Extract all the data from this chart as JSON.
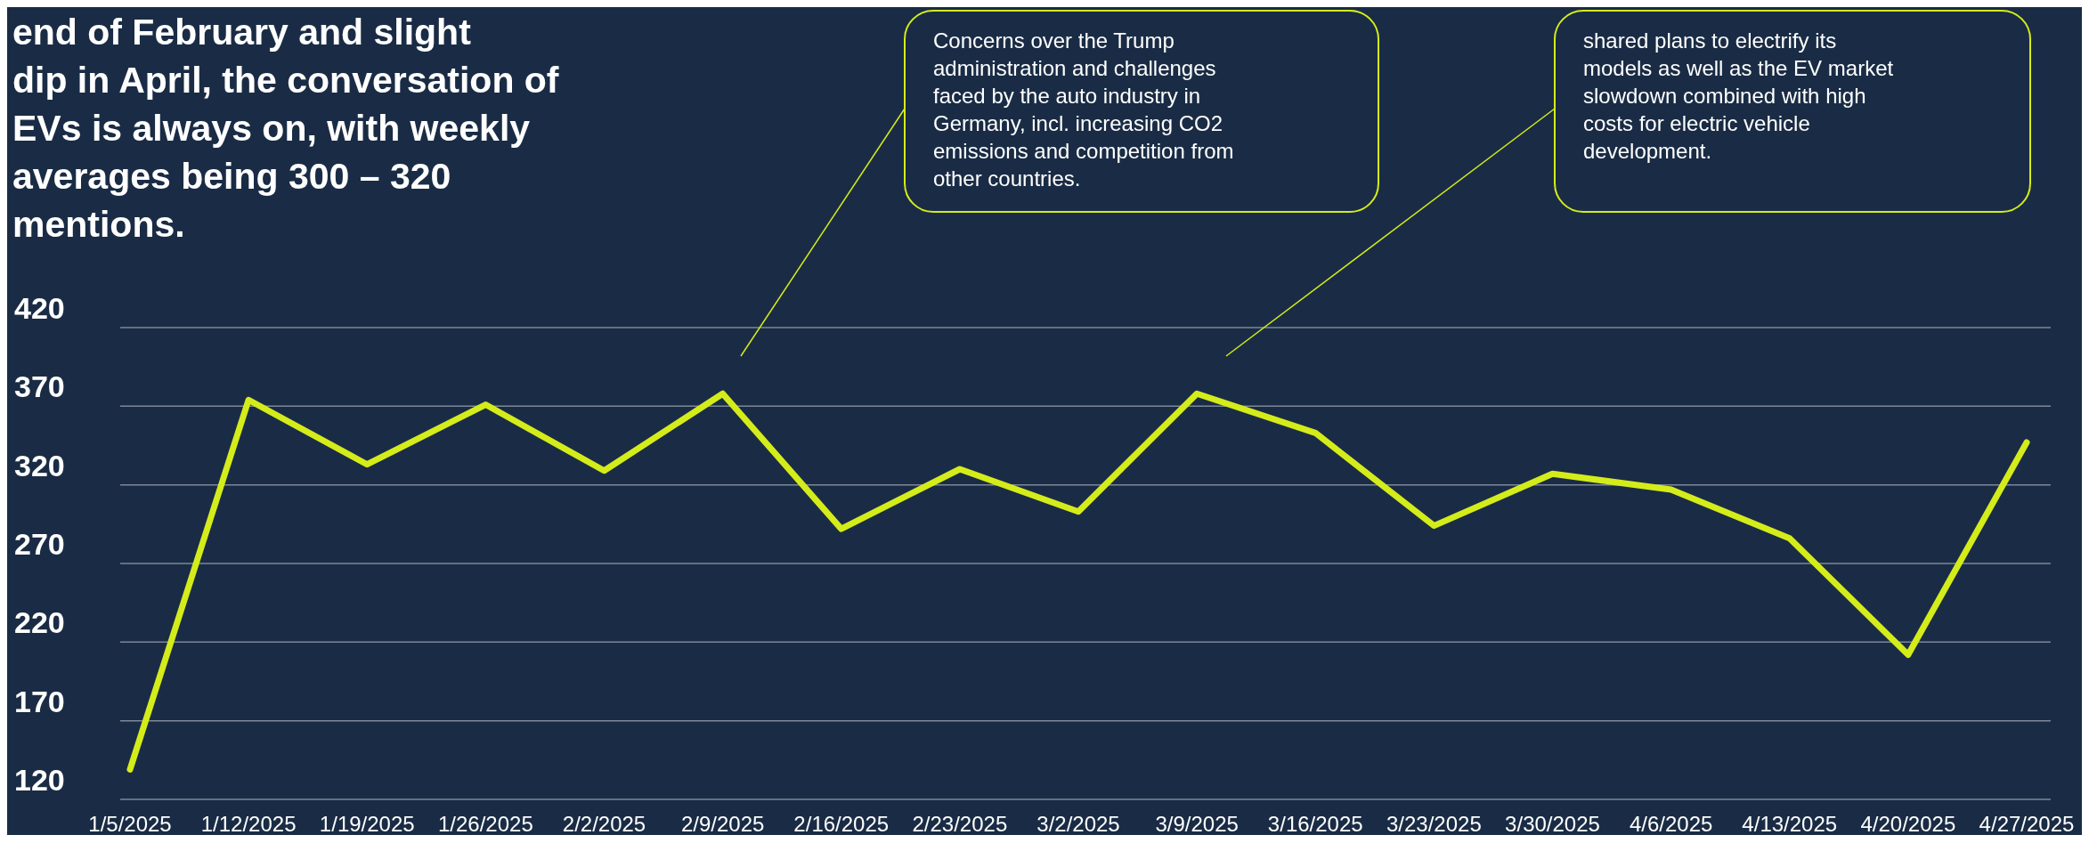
{
  "chart_data": {
    "type": "line",
    "title": "end of February and slight\ndip in April, the conversation of\nEVs is always on, with weekly\naverages being  300 – 320\nmentions.",
    "categories": [
      "1/5/2025",
      "1/12/2025",
      "1/19/2025",
      "1/26/2025",
      "2/2/2025",
      "2/9/2025",
      "2/16/2025",
      "2/23/2025",
      "3/2/2025",
      "3/9/2025",
      "3/16/2025",
      "3/23/2025",
      "3/30/2025",
      "4/6/2025",
      "4/13/2025",
      "4/20/2025",
      "4/27/2025"
    ],
    "values": [
      139,
      374,
      333,
      371,
      329,
      378,
      292,
      330,
      303,
      378,
      353,
      294,
      327,
      317,
      286,
      212,
      347
    ],
    "color": "#d4ec1a",
    "ylim": [
      120,
      420
    ],
    "yticks": [
      120,
      170,
      220,
      270,
      320,
      370,
      420
    ],
    "grid": "y",
    "annotations": [
      "Concerns over the Trump administration and challenges faced by the auto industry in Germany, incl. increasing CO2 emissions and competition from other countries.",
      "shared plans to electrify its models as well as the EV market slowdown combined with high costs for electric vehicle development."
    ]
  }
}
